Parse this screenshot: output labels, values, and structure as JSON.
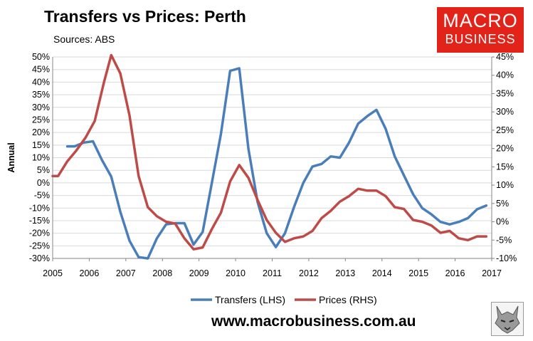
{
  "header": {
    "title": "Transfers vs Prices: Perth",
    "subtitle": "Sources: ABS"
  },
  "logo": {
    "line1": "MACRO",
    "line2": "BUSINESS"
  },
  "footer": {
    "url": "www.macrobusiness.com.au"
  },
  "colors": {
    "transfers": "#4a7ebb",
    "prices": "#be4b48",
    "logo_bg": "#e2231a"
  },
  "chart_data": {
    "type": "line",
    "ylabel": "Annual",
    "x_ticks": [
      "2005",
      "2006",
      "2007",
      "2008",
      "2009",
      "2010",
      "2011",
      "2012",
      "2013",
      "2014",
      "2015",
      "2016",
      "2017"
    ],
    "xlim": [
      2005,
      2017
    ],
    "left_axis": {
      "ylim": [
        -30,
        50
      ],
      "step": 5,
      "ticks": [
        "50%",
        "45%",
        "40%",
        "35%",
        "30%",
        "25%",
        "20%",
        "15%",
        "10%",
        "5%",
        "0%",
        "-5%",
        "-10%",
        "-15%",
        "-20%",
        "-25%",
        "-30%"
      ]
    },
    "right_axis": {
      "ylim": [
        -10,
        45
      ],
      "ticks": [
        "45%",
        "40%",
        "35%",
        "30%",
        "25%",
        "20%",
        "15%",
        "10%",
        "5%",
        "0%",
        "-5%",
        "-10%"
      ]
    },
    "legend_position": "bottom",
    "series": [
      {
        "name": "Transfers (LHS)",
        "axis": "left",
        "x": [
          2005.4,
          2005.6,
          2005.85,
          2006.1,
          2006.35,
          2006.6,
          2006.85,
          2007.1,
          2007.35,
          2007.6,
          2007.85,
          2008.1,
          2008.35,
          2008.6,
          2008.85,
          2009.1,
          2009.35,
          2009.6,
          2009.85,
          2010.1,
          2010.35,
          2010.6,
          2010.85,
          2011.1,
          2011.35,
          2011.6,
          2011.85,
          2012.1,
          2012.35,
          2012.6,
          2012.85,
          2013.1,
          2013.35,
          2013.6,
          2013.85,
          2014.1,
          2014.35,
          2014.6,
          2014.85,
          2015.1,
          2015.35,
          2015.6,
          2015.85,
          2016.1,
          2016.35,
          2016.6,
          2016.85
        ],
        "y": [
          14.5,
          14.5,
          16,
          16.5,
          9,
          2.5,
          -11.5,
          -23,
          -29.5,
          -30,
          -22,
          -16.5,
          -16,
          -16,
          -24.5,
          -19.5,
          0,
          19.5,
          44.5,
          45.5,
          13.5,
          -7.5,
          -20,
          -25.5,
          -20,
          -9.5,
          0,
          6.5,
          7.5,
          10.5,
          10,
          16,
          23.5,
          26.5,
          29,
          21.5,
          10.5,
          3,
          -4.5,
          -10,
          -12.5,
          -15.5,
          -16.5,
          -15.5,
          -14,
          -10.5,
          -9
        ]
      },
      {
        "name": "Prices (RHS)",
        "axis": "right",
        "x": [
          2005.0,
          2005.15,
          2005.4,
          2005.65,
          2005.9,
          2006.15,
          2006.4,
          2006.6,
          2006.85,
          2007.1,
          2007.35,
          2007.6,
          2007.85,
          2008.1,
          2008.35,
          2008.6,
          2008.85,
          2009.1,
          2009.35,
          2009.6,
          2009.85,
          2010.1,
          2010.35,
          2010.6,
          2010.85,
          2011.1,
          2011.35,
          2011.6,
          2011.85,
          2012.1,
          2012.35,
          2012.6,
          2012.85,
          2013.1,
          2013.35,
          2013.6,
          2013.85,
          2014.1,
          2014.35,
          2014.6,
          2014.85,
          2015.1,
          2015.35,
          2015.6,
          2015.85,
          2016.1,
          2016.35,
          2016.6,
          2016.85
        ],
        "y": [
          12.5,
          12.5,
          16.5,
          19.5,
          23,
          27.5,
          38,
          45.5,
          40.5,
          29,
          12.5,
          4,
          1.5,
          0,
          -0.5,
          -4.5,
          -7.5,
          -7,
          -2,
          2.5,
          11,
          15.5,
          12,
          6,
          0.5,
          -3,
          -5.5,
          -4.5,
          -4,
          -2.5,
          1,
          3,
          5.5,
          7,
          9,
          8.5,
          8.5,
          7,
          4,
          3.5,
          0.5,
          0,
          -1,
          -3,
          -2.5,
          -4.5,
          -5,
          -4,
          -4
        ]
      }
    ]
  }
}
